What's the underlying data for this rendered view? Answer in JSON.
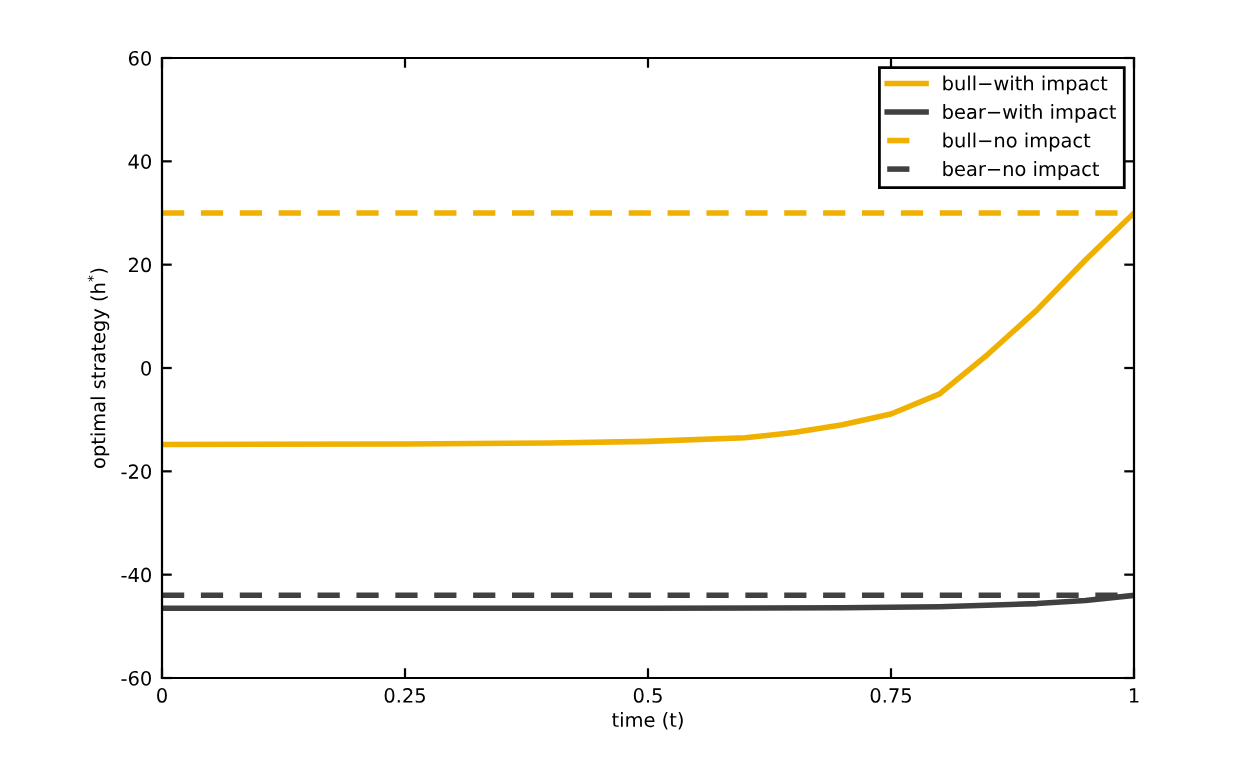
{
  "chart_data": {
    "type": "line",
    "xlabel": "time (t)",
    "ylabel": "optimal strategy (h$^{*}$)",
    "xlim": [
      0,
      1
    ],
    "ylim": [
      -60,
      60
    ],
    "xticks": [
      0,
      0.25,
      0.5,
      0.75,
      1
    ],
    "yticks": [
      -60,
      -40,
      -20,
      0,
      20,
      40,
      60
    ],
    "grid": false,
    "legend": "top right",
    "series": [
      {
        "name": "bull−with impact",
        "color": "#f0b000",
        "line_style": "solid",
        "x": [
          0,
          0.25,
          0.4,
          0.5,
          0.6,
          0.65,
          0.7,
          0.75,
          0.8,
          0.85,
          0.9,
          0.95,
          1
        ],
        "values": [
          -14.8,
          -14.7,
          -14.5,
          -14.2,
          -13.5,
          -12.5,
          -11,
          -8.9,
          -5,
          2.7,
          11.2,
          20.9,
          30
        ]
      },
      {
        "name": "bear−with impact",
        "color": "#404040",
        "line_style": "solid",
        "x": [
          0,
          0.25,
          0.5,
          0.7,
          0.8,
          0.9,
          0.95,
          1
        ],
        "values": [
          -46.5,
          -46.5,
          -46.5,
          -46.4,
          -46.2,
          -45.6,
          -45,
          -44
        ]
      },
      {
        "name": "bull−no impact",
        "color": "#f0b000",
        "line_style": "dashed",
        "x": [
          0,
          1
        ],
        "values": [
          30,
          30
        ]
      },
      {
        "name": "bear−no impact",
        "color": "#404040",
        "line_style": "dashed",
        "x": [
          0,
          1
        ],
        "values": [
          -44,
          -44
        ]
      }
    ]
  }
}
